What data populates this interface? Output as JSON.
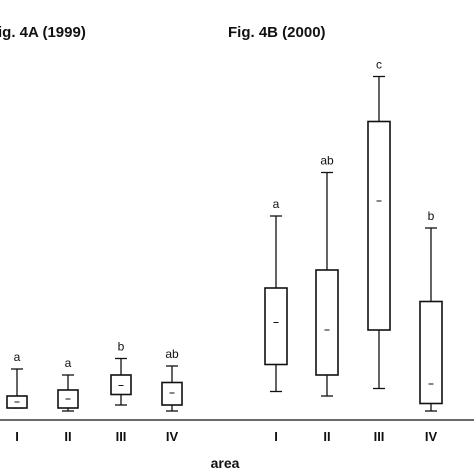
{
  "chart_data": {
    "type": "box",
    "xlabel": "area",
    "panels": [
      {
        "title": "ig. 4A (1999)",
        "categories": [
          "I",
          "II",
          "III",
          "IV"
        ],
        "boxes": [
          {
            "min": 0.8,
            "q1": 0.8,
            "median": 1.2,
            "q3": 1.6,
            "max": 3.4,
            "letter": "a"
          },
          {
            "min": 0.6,
            "q1": 0.8,
            "median": 1.4,
            "q3": 2.0,
            "max": 3.0,
            "letter": "a"
          },
          {
            "min": 1.0,
            "q1": 1.7,
            "median": 2.3,
            "q3": 3.0,
            "max": 4.1,
            "letter": "b"
          },
          {
            "min": 0.6,
            "q1": 1.0,
            "median": 1.8,
            "q3": 2.5,
            "max": 3.6,
            "letter": "ab"
          }
        ]
      },
      {
        "title": "Fig. 4B (2000)",
        "categories": [
          "I",
          "II",
          "III",
          "IV"
        ],
        "boxes": [
          {
            "min": 1.9,
            "q1": 3.7,
            "median": 6.5,
            "q3": 8.8,
            "max": 13.6,
            "letter": "a"
          },
          {
            "min": 1.6,
            "q1": 3.0,
            "median": 6.0,
            "q3": 10.0,
            "max": 16.5,
            "letter": "ab"
          },
          {
            "min": 2.1,
            "q1": 6.0,
            "median": 14.6,
            "q3": 19.9,
            "max": 22.9,
            "letter": "c"
          },
          {
            "min": 0.6,
            "q1": 1.1,
            "median": 2.4,
            "q3": 7.9,
            "max": 12.8,
            "letter": "b"
          }
        ]
      }
    ]
  }
}
